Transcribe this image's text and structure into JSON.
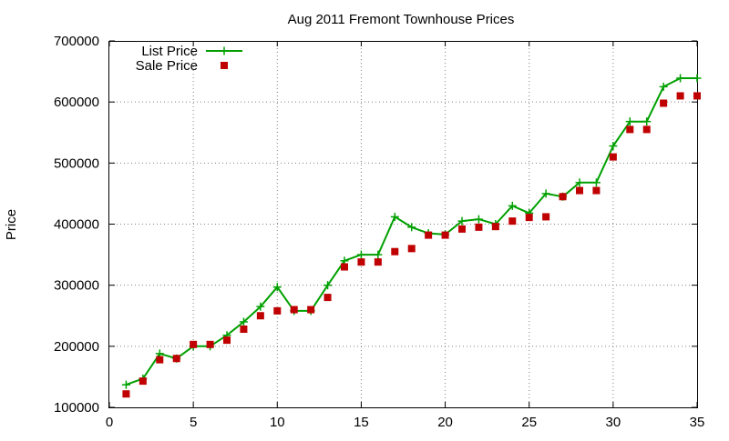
{
  "chart_data": {
    "type": "line",
    "title": "Aug 2011 Fremont Townhouse Prices",
    "xlabel": "",
    "ylabel": "Price",
    "xlim": [
      0,
      35
    ],
    "ylim": [
      100000,
      700000
    ],
    "xticks": [
      "0",
      "5",
      "10",
      "15",
      "20",
      "25",
      "30",
      "35"
    ],
    "xtick_values": [
      0,
      5,
      10,
      15,
      20,
      25,
      30,
      35
    ],
    "yticks": [
      "100000",
      "200000",
      "300000",
      "400000",
      "500000",
      "600000",
      "700000"
    ],
    "ytick_values": [
      100000,
      200000,
      300000,
      400000,
      500000,
      600000,
      700000
    ],
    "grid": true,
    "legend_position": "top-left",
    "series": [
      {
        "name": "List Price",
        "style": "linespoints",
        "marker": "plus",
        "color": "#00a000",
        "x": [
          1,
          2,
          3,
          4,
          5,
          6,
          7,
          8,
          9,
          10,
          11,
          12,
          13,
          14,
          15,
          16,
          17,
          18,
          19,
          20,
          21,
          22,
          23,
          24,
          25,
          26,
          27,
          28,
          29,
          30,
          31,
          32,
          33,
          34,
          35
        ],
        "values": [
          137000,
          147000,
          188000,
          180000,
          200000,
          200000,
          218000,
          240000,
          265000,
          297000,
          258000,
          258000,
          300000,
          340000,
          350000,
          350000,
          412000,
          395000,
          385000,
          383000,
          405000,
          408000,
          400000,
          430000,
          418000,
          450000,
          445000,
          468000,
          468000,
          528000,
          568000,
          568000,
          625000,
          639000,
          639000
        ]
      },
      {
        "name": "Sale Price",
        "style": "points",
        "marker": "square",
        "color": "#c00000",
        "x": [
          1,
          2,
          3,
          4,
          5,
          6,
          7,
          8,
          9,
          10,
          11,
          12,
          13,
          14,
          15,
          16,
          17,
          18,
          19,
          20,
          21,
          22,
          23,
          24,
          25,
          26,
          27,
          28,
          29,
          30,
          31,
          32,
          33,
          34,
          35
        ],
        "values": [
          122000,
          143000,
          178000,
          180000,
          203000,
          203000,
          210000,
          228000,
          250000,
          258000,
          260000,
          260000,
          280000,
          330000,
          338000,
          338000,
          355000,
          360000,
          382000,
          382000,
          392000,
          395000,
          396000,
          405000,
          411000,
          412000,
          445000,
          455000,
          455000,
          510000,
          555000,
          555000,
          598000,
          610000,
          610000
        ]
      }
    ]
  }
}
